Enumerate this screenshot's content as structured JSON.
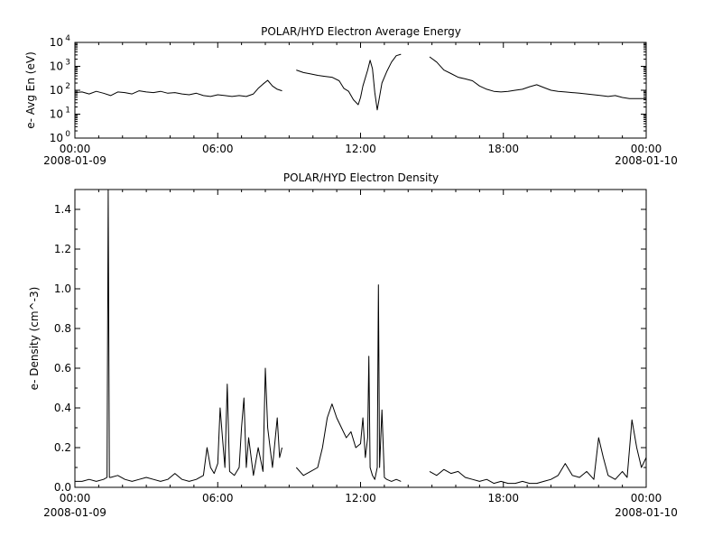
{
  "chart_data": [
    {
      "type": "line",
      "title": "POLAR/HYD  Electron Average Energy",
      "ylabel": "e- Avg En (eV)",
      "xlabel": "",
      "y_scale": "log",
      "ylim": [
        1,
        10000
      ],
      "y_ticks": [
        {
          "value": 1,
          "base": "10",
          "exp": "0"
        },
        {
          "value": 10,
          "base": "10",
          "exp": "1"
        },
        {
          "value": 100,
          "base": "10",
          "exp": "2"
        },
        {
          "value": 1000,
          "base": "10",
          "exp": "3"
        },
        {
          "value": 10000,
          "base": "10",
          "exp": "4"
        }
      ],
      "xlim": [
        0,
        24
      ],
      "x_unit": "hours since 2008-01-09 00:00",
      "x_ticks": [
        {
          "value": 0,
          "time": "00:00",
          "date": "2008-01-09"
        },
        {
          "value": 6,
          "time": "06:00",
          "date": ""
        },
        {
          "value": 12,
          "time": "12:00",
          "date": ""
        },
        {
          "value": 18,
          "time": "18:00",
          "date": ""
        },
        {
          "value": 24,
          "time": "00:00",
          "date": "2008-01-10"
        }
      ],
      "segments": [
        {
          "x": [
            0.0,
            0.3,
            0.6,
            0.9,
            1.2,
            1.5,
            1.8,
            2.1,
            2.4,
            2.7,
            3.0,
            3.3,
            3.6,
            3.9,
            4.2,
            4.5,
            4.8,
            5.1,
            5.4,
            5.7,
            6.0,
            6.3,
            6.6,
            6.9,
            7.2,
            7.5,
            7.7,
            7.9,
            8.1,
            8.3,
            8.5,
            8.7
          ],
          "y": [
            80,
            85,
            70,
            90,
            75,
            60,
            85,
            80,
            70,
            95,
            85,
            80,
            90,
            75,
            80,
            70,
            65,
            75,
            60,
            55,
            65,
            60,
            55,
            60,
            55,
            70,
            120,
            180,
            260,
            150,
            110,
            95
          ]
        },
        {
          "x": [
            9.3,
            9.6,
            9.9,
            10.2,
            10.5,
            10.8,
            11.1,
            11.3,
            11.5,
            11.7,
            11.9,
            12.0,
            12.1,
            12.3,
            12.4,
            12.5,
            12.6,
            12.7,
            12.9,
            13.1,
            13.3,
            13.5,
            13.7
          ],
          "y": [
            700,
            550,
            480,
            420,
            380,
            350,
            250,
            120,
            90,
            40,
            25,
            50,
            150,
            700,
            1800,
            800,
            80,
            15,
            200,
            600,
            1500,
            2800,
            3200
          ]
        },
        {
          "x": [
            14.9,
            15.2,
            15.5,
            15.8,
            16.1,
            16.4,
            16.7,
            17.0,
            17.3,
            17.6,
            17.9,
            18.2,
            18.5,
            18.8,
            19.1,
            19.4,
            19.7,
            20.0,
            20.3,
            20.6,
            20.9,
            21.2,
            21.5,
            21.8,
            22.1,
            22.4,
            22.7,
            23.0,
            23.3,
            23.6,
            24.0
          ],
          "y": [
            2500,
            1500,
            700,
            500,
            350,
            300,
            250,
            150,
            110,
            90,
            85,
            90,
            100,
            110,
            140,
            170,
            130,
            100,
            90,
            85,
            80,
            75,
            70,
            65,
            60,
            55,
            60,
            50,
            45,
            45,
            45
          ]
        }
      ]
    },
    {
      "type": "line",
      "title": "POLAR/HYD  Electron Density",
      "ylabel": "e- Density (cm^-3)",
      "xlabel": "",
      "y_scale": "linear",
      "ylim": [
        0,
        1.5
      ],
      "y_ticks": [
        {
          "value": 0.0,
          "label": "0.0"
        },
        {
          "value": 0.2,
          "label": "0.2"
        },
        {
          "value": 0.4,
          "label": "0.4"
        },
        {
          "value": 0.6,
          "label": "0.6"
        },
        {
          "value": 0.8,
          "label": "0.8"
        },
        {
          "value": 1.0,
          "label": "1.0"
        },
        {
          "value": 1.2,
          "label": "1.2"
        },
        {
          "value": 1.4,
          "label": "1.4"
        }
      ],
      "xlim": [
        0,
        24
      ],
      "x_unit": "hours since 2008-01-09 00:00",
      "x_ticks": [
        {
          "value": 0,
          "time": "00:00",
          "date": "2008-01-09"
        },
        {
          "value": 6,
          "time": "06:00",
          "date": ""
        },
        {
          "value": 12,
          "time": "12:00",
          "date": ""
        },
        {
          "value": 18,
          "time": "18:00",
          "date": ""
        },
        {
          "value": 24,
          "time": "00:00",
          "date": "2008-01-10"
        }
      ],
      "segments": [
        {
          "x": [
            0.0,
            0.3,
            0.6,
            0.9,
            1.2,
            1.35,
            1.4,
            1.45,
            1.5,
            1.8,
            2.1,
            2.4,
            2.7,
            3.0,
            3.3,
            3.6,
            3.9,
            4.2,
            4.5,
            4.8,
            5.1,
            5.4,
            5.55,
            5.7,
            5.85,
            6.0,
            6.1,
            6.2,
            6.3,
            6.4,
            6.5,
            6.7,
            6.9,
            7.0,
            7.1,
            7.2,
            7.3,
            7.5,
            7.7,
            7.9,
            8.0,
            8.1,
            8.3,
            8.5,
            8.6,
            8.7
          ],
          "y": [
            0.03,
            0.03,
            0.04,
            0.03,
            0.04,
            0.05,
            1.5,
            0.05,
            0.05,
            0.06,
            0.04,
            0.03,
            0.04,
            0.05,
            0.04,
            0.03,
            0.04,
            0.07,
            0.04,
            0.03,
            0.04,
            0.06,
            0.2,
            0.1,
            0.07,
            0.12,
            0.4,
            0.25,
            0.1,
            0.52,
            0.08,
            0.06,
            0.1,
            0.3,
            0.45,
            0.1,
            0.25,
            0.06,
            0.2,
            0.08,
            0.6,
            0.3,
            0.1,
            0.35,
            0.15,
            0.2
          ]
        },
        {
          "x": [
            9.3,
            9.6,
            9.9,
            10.2,
            10.4,
            10.6,
            10.8,
            11.0,
            11.2,
            11.4,
            11.6,
            11.8,
            12.0,
            12.1,
            12.2,
            12.3,
            12.35,
            12.4,
            12.5,
            12.6,
            12.7,
            12.75,
            12.8,
            12.9,
            13.0,
            13.1,
            13.3,
            13.5,
            13.7
          ],
          "y": [
            0.1,
            0.06,
            0.08,
            0.1,
            0.2,
            0.35,
            0.42,
            0.35,
            0.3,
            0.25,
            0.28,
            0.2,
            0.22,
            0.35,
            0.15,
            0.25,
            0.66,
            0.1,
            0.06,
            0.04,
            0.1,
            1.02,
            0.1,
            0.39,
            0.05,
            0.04,
            0.03,
            0.04,
            0.03
          ]
        },
        {
          "x": [
            14.9,
            15.2,
            15.5,
            15.8,
            16.1,
            16.4,
            16.7,
            17.0,
            17.3,
            17.6,
            17.9,
            18.2,
            18.5,
            18.8,
            19.1,
            19.4,
            19.7,
            20.0,
            20.3,
            20.6,
            20.9,
            21.2,
            21.5,
            21.8,
            22.0,
            22.2,
            22.4,
            22.7,
            23.0,
            23.2,
            23.4,
            23.6,
            23.8,
            24.0
          ],
          "y": [
            0.08,
            0.06,
            0.09,
            0.07,
            0.08,
            0.05,
            0.04,
            0.03,
            0.04,
            0.02,
            0.03,
            0.02,
            0.02,
            0.03,
            0.02,
            0.02,
            0.03,
            0.04,
            0.06,
            0.12,
            0.06,
            0.05,
            0.08,
            0.04,
            0.25,
            0.15,
            0.06,
            0.04,
            0.08,
            0.05,
            0.34,
            0.2,
            0.1,
            0.15
          ]
        }
      ]
    }
  ]
}
